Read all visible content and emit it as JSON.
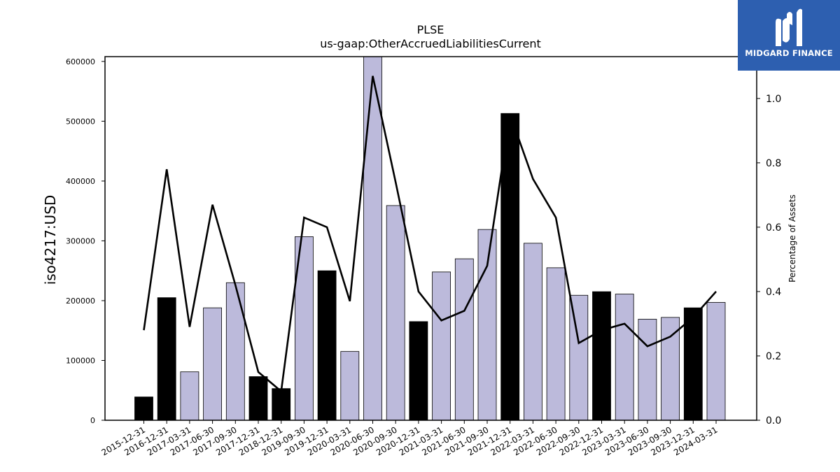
{
  "brand": {
    "name": "MIDGARD FINANCE",
    "bg_color": "#2d5fb0",
    "icon": "midgard-m-logo-icon"
  },
  "chart_data": {
    "type": "bar",
    "title": "PLSE",
    "subtitle": "us-gaap:OtherAccruedLiabilitiesCurrent",
    "ylabel": "iso4217:USD",
    "ylabel_right": "Percentage of Assets",
    "xlabel": "",
    "ylim": [
      0,
      608000
    ],
    "ylim_right": [
      0,
      1.13
    ],
    "yticks": [
      0,
      100000,
      200000,
      300000,
      400000,
      500000,
      600000
    ],
    "yticks_right": [
      0.0,
      0.2,
      0.4,
      0.6,
      0.8,
      1.0
    ],
    "grid": false,
    "categories": [
      "2015-12-31",
      "2016-12-31",
      "2017-03-31",
      "2017-06-30",
      "2017-09-30",
      "2017-12-31",
      "2018-12-31",
      "2019-09-30",
      "2019-12-31",
      "2020-03-31",
      "2020-06-30",
      "2020-09-30",
      "2020-12-31",
      "2021-03-31",
      "2021-06-30",
      "2021-09-30",
      "2021-12-31",
      "2022-03-31",
      "2022-06-30",
      "2022-09-30",
      "2022-12-31",
      "2023-03-31",
      "2023-06-30",
      "2023-09-30",
      "2023-12-31",
      "2024-03-31"
    ],
    "values": [
      39000,
      205000,
      81000,
      188000,
      230000,
      73000,
      53000,
      307000,
      250000,
      115000,
      610000,
      359000,
      165000,
      248000,
      270000,
      319000,
      513000,
      296000,
      255000,
      209000,
      215000,
      211000,
      169000,
      172000,
      188000,
      197000
    ],
    "annual": [
      true,
      true,
      false,
      false,
      false,
      true,
      true,
      false,
      true,
      false,
      false,
      false,
      true,
      false,
      false,
      false,
      true,
      false,
      false,
      false,
      true,
      false,
      false,
      false,
      true,
      false
    ],
    "line_values": [
      0.28,
      0.78,
      0.29,
      0.67,
      0.42,
      0.15,
      0.09,
      0.63,
      0.6,
      0.37,
      1.07,
      0.74,
      0.4,
      0.31,
      0.34,
      0.48,
      0.95,
      0.75,
      0.63,
      0.24,
      0.28,
      0.3,
      0.23,
      0.26,
      0.32,
      0.4
    ],
    "colors": {
      "annual_bar": "#000000",
      "quarter_bar": "#bcbadb",
      "line": "#000000"
    }
  }
}
